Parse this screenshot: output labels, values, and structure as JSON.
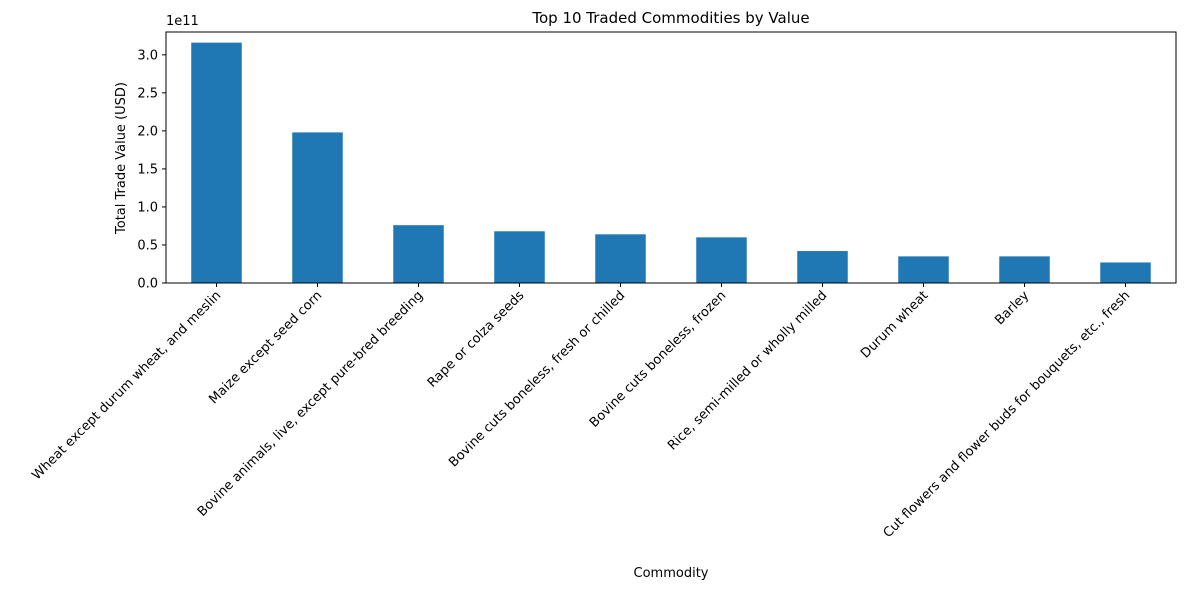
{
  "chart_data": {
    "type": "bar",
    "title": "Top 10 Traded Commodities by Value",
    "xlabel": "Commodity",
    "ylabel": "Total Trade Value (USD)",
    "y_offset_label": "1e11",
    "categories": [
      "Wheat except durum wheat, and meslin",
      "Maize except seed corn",
      "Bovine animals, live, except pure-bred breeding",
      "Rape or colza seeds",
      "Bovine cuts boneless, fresh or chilled",
      "Bovine cuts boneless, frozen",
      "Rice, semi-milled or wholly milled",
      "Durum wheat",
      "Barley",
      "Cut flowers and flower buds for bouquets, etc., fresh"
    ],
    "values": [
      316000000000,
      198000000000,
      76000000000,
      68000000000,
      64000000000,
      60000000000,
      42000000000,
      35000000000,
      35000000000,
      27000000000
    ],
    "ylim": [
      0,
      330000000000
    ],
    "yticks": [
      0,
      50000000000,
      100000000000,
      150000000000,
      200000000000,
      250000000000,
      300000000000
    ],
    "ytick_labels": [
      "0.0",
      "0.5",
      "1.0",
      "1.5",
      "2.0",
      "2.5",
      "3.0"
    ],
    "bar_color": "#1f77b4",
    "grid": false,
    "legend": "none"
  }
}
